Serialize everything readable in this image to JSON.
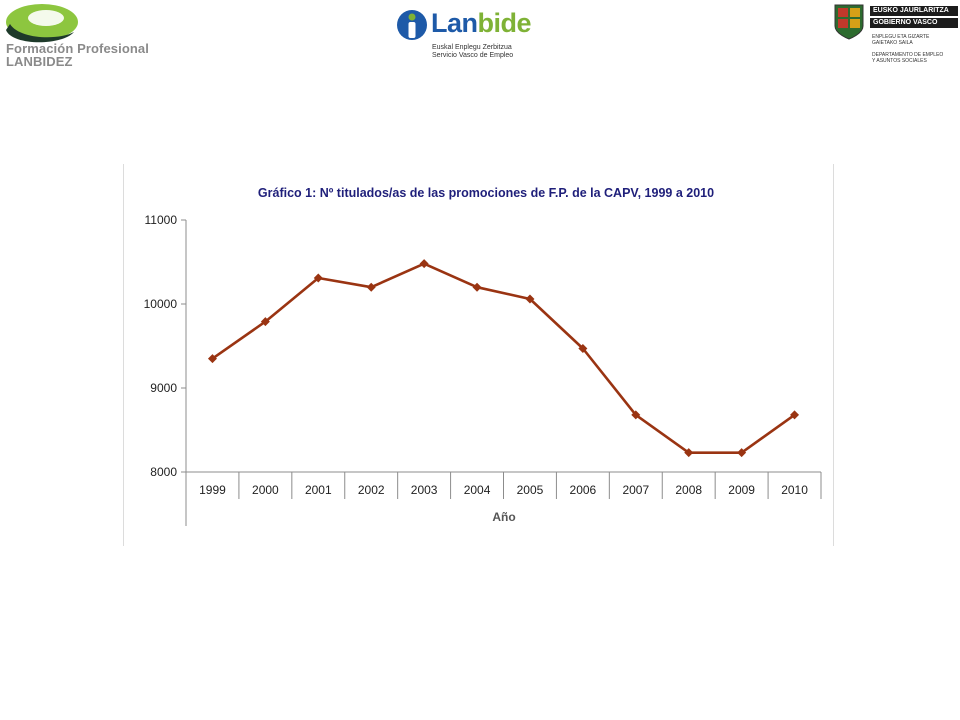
{
  "header": {
    "fp_logo": {
      "line1": "Formación Profesional",
      "line2": "LANBIDEZ"
    },
    "lanbide_logo": {
      "name_main": "Lan",
      "name_accent": "bide",
      "sub1": "Euskal Enplegu Zerbitzua",
      "sub2": "Servicio Vasco de Empleo"
    },
    "gv_logo": {
      "line1": "EUSKO JAURLARITZA",
      "line2": "GOBIERNO VASCO",
      "dept1a": "ENPLEGU ETA GIZARTE",
      "dept1b": "GAIETAKO SAILA",
      "dept2a": "DEPARTAMENTO DE EMPLEO",
      "dept2b": "Y ASUNTOS SOCIALES"
    }
  },
  "colors": {
    "series": "#9a3412",
    "title": "#1f1f7a",
    "fp_green": "#8dc63f",
    "fp_dark": "#1e3a2a"
  },
  "chart_data": {
    "type": "line",
    "title": "Gráfico 1: Nº titulados/as de las promociones de F.P. de la CAPV, 1999 a 2010",
    "xlabel": "Año",
    "ylabel": "",
    "categories": [
      "1999",
      "2000",
      "2001",
      "2002",
      "2003",
      "2004",
      "2005",
      "2006",
      "2007",
      "2008",
      "2009",
      "2010"
    ],
    "series": [
      {
        "values": [
          9350,
          9790,
          10310,
          10200,
          10480,
          10200,
          10060,
          9470,
          8680,
          8230,
          8230,
          8680
        ]
      }
    ],
    "ylim": [
      8000,
      11000
    ],
    "yticks": [
      "8000",
      "9000",
      "10000",
      "11000"
    ],
    "marker": "diamond",
    "grid": false,
    "legend": "none"
  }
}
